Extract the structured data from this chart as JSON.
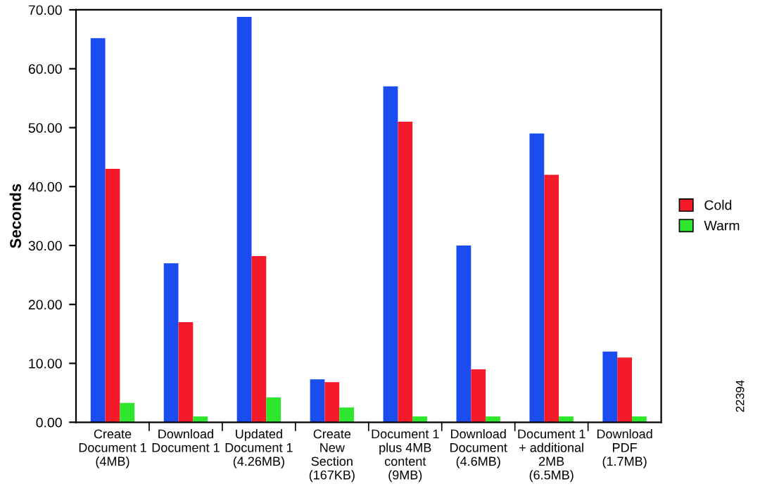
{
  "chart_data": {
    "type": "bar",
    "ylabel": "Seconds",
    "categories": [
      "Create\nDocument 1\n(4MB)",
      "Download\nDocument 1",
      "Updated\nDocument 1\n(4.26MB)",
      "Create\nNew\nSection\n(167KB)",
      "Document 1\nplus 4MB\ncontent\n(9MB)",
      "Download\nDocument\n(4.6MB)",
      "Document 1\n+ additional\n2MB\n(6.5MB)",
      "Download\nPDF\n(1.7MB)"
    ],
    "series": [
      {
        "color": "#1a4cf0",
        "values": [
          65.2,
          27,
          68.8,
          7.3,
          57,
          30,
          49,
          12
        ]
      },
      {
        "name": "Cold",
        "color": "#f51a2a",
        "values": [
          43,
          17,
          28.2,
          6.8,
          51,
          9,
          42,
          11
        ]
      },
      {
        "name": "Warm",
        "color": "#2ee62e",
        "values": [
          3.3,
          1,
          4.2,
          2.5,
          1,
          1,
          1,
          1
        ]
      }
    ],
    "ylim": [
      0,
      70
    ],
    "yticks": [
      {
        "value": 0,
        "label": "0.00"
      },
      {
        "value": 10,
        "label": "10.00"
      },
      {
        "value": 20,
        "label": "20.00"
      },
      {
        "value": 30,
        "label": "30.00"
      },
      {
        "value": 40,
        "label": "40.00"
      },
      {
        "value": 50,
        "label": "50.00"
      },
      {
        "value": 60,
        "label": "60.00"
      },
      {
        "value": 70,
        "label": "70.00"
      }
    ],
    "grid": false,
    "legend": "right",
    "annotations": [
      "22394"
    ]
  }
}
